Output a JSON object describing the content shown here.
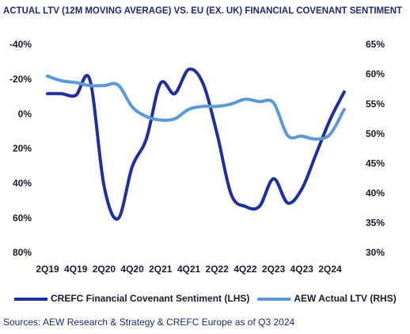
{
  "chart_data": {
    "type": "line",
    "title": "ACTUAL LTV (12M MOVING AVERAGE) VS. EU (EX. UK) FINANCIAL COVENANT SENTIMENT",
    "source": "Sources: AEW Research & Strategy & CREFC Europe as of Q3 2024",
    "categories": [
      "2Q19",
      null,
      "4Q19",
      null,
      "2Q20",
      null,
      "4Q20",
      null,
      "2Q21",
      null,
      "4Q21",
      null,
      "2Q22",
      null,
      "4Q22",
      null,
      "2Q23",
      null,
      "4Q23",
      null,
      "2Q24",
      null
    ],
    "series": [
      {
        "name": "CREFC Financial Covenant Sentiment (LHS)",
        "color": "#1f2f9e",
        "values": [
          -12,
          -12,
          -11,
          -20,
          41,
          60,
          30,
          14,
          -18,
          -12,
          -26,
          -18,
          11,
          46,
          53,
          53,
          37,
          51,
          43,
          23,
          3,
          -13
        ]
      },
      {
        "name": "AEW Actual LTV (RHS)",
        "color": "#5b9bd5",
        "axis": "y2",
        "values": [
          59.8,
          59,
          58.7,
          58.2,
          58.2,
          58.3,
          54.6,
          53,
          52.4,
          52.6,
          54.2,
          54.7,
          54.7,
          55.1,
          55.9,
          55.5,
          55.3,
          49.8,
          49.7,
          49.2,
          50,
          54.2
        ]
      }
    ],
    "ylim": [
      -40,
      80
    ],
    "y_inverted": true,
    "yticks": [
      {
        "value": -40,
        "label": "-40%"
      },
      {
        "value": -20,
        "label": "-20%"
      },
      {
        "value": 0,
        "label": "0%"
      },
      {
        "value": 20,
        "label": "20%"
      },
      {
        "value": 40,
        "label": "40%"
      },
      {
        "value": 60,
        "label": "60%"
      },
      {
        "value": 80,
        "label": "80%"
      }
    ],
    "y2lim": [
      30,
      65
    ],
    "y2ticks": [
      {
        "value": 30,
        "label": "30%"
      },
      {
        "value": 35,
        "label": "35%"
      },
      {
        "value": 40,
        "label": "40%"
      },
      {
        "value": 45,
        "label": "45%"
      },
      {
        "value": 50,
        "label": "50%"
      },
      {
        "value": 55,
        "label": "55%"
      },
      {
        "value": 60,
        "label": "60%"
      },
      {
        "value": 65,
        "label": "65%"
      }
    ],
    "grid": false,
    "legend": "bottom"
  }
}
